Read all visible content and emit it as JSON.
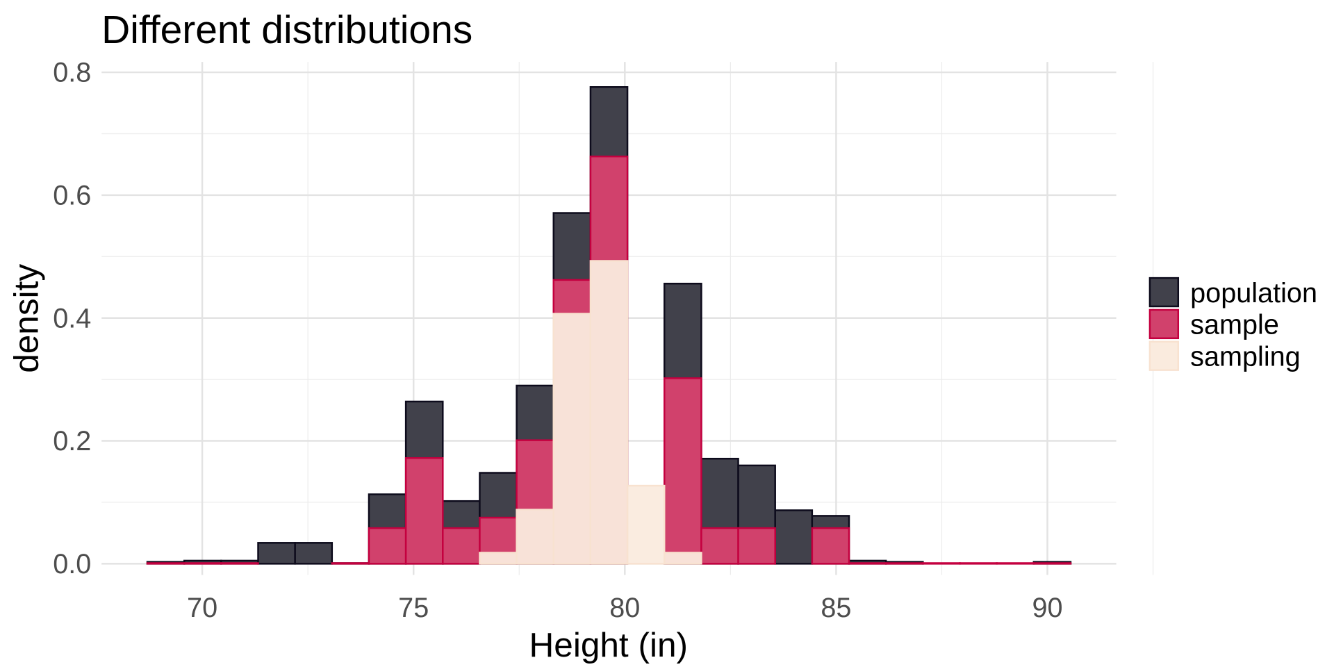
{
  "chart_data": {
    "type": "bar",
    "subtype": "overlaid-histogram",
    "title": "Different distributions",
    "xlabel": "Height (in)",
    "ylabel": "density",
    "xlim": [
      68.3,
      92.3
    ],
    "ylim": [
      -0.04,
      0.83
    ],
    "x_ticks": [
      70,
      75,
      80,
      85,
      90
    ],
    "x_tick_labels": [
      "70",
      "75",
      "80",
      "85",
      "90"
    ],
    "y_ticks": [
      0,
      0.2,
      0.4,
      0.6,
      0.8
    ],
    "y_tick_labels": [
      "0.0",
      "0.2",
      "0.4",
      "0.6",
      "0.8"
    ],
    "grid": true,
    "legend_position": "right",
    "bin_start": 68.7,
    "bin_width": 0.874,
    "series": [
      {
        "name": "population",
        "fill": "#41414b",
        "stroke": "#0d0b1c",
        "values": [
          0.003,
          0.005,
          0.005,
          0.034,
          0.034,
          0.001,
          0.113,
          0.264,
          0.102,
          0.148,
          0.29,
          0.571,
          0.776,
          0.0,
          0.456,
          0.171,
          0.16,
          0.087,
          0.078,
          0.005,
          0.003,
          0.0,
          0.0,
          0.0,
          0.003
        ]
      },
      {
        "name": "sample",
        "fill": "#d1416c",
        "stroke": "#c4003f",
        "values": [
          0.001,
          0.001,
          0.001,
          0.0,
          0.0,
          0.001,
          0.058,
          0.172,
          0.058,
          0.075,
          0.201,
          0.462,
          0.663,
          0.0,
          0.302,
          0.058,
          0.058,
          0.0,
          0.058,
          0.001,
          0.001,
          0.001,
          0.001,
          0.001,
          0.001
        ]
      },
      {
        "name": "sampling",
        "fill": "#faebde",
        "stroke": "#f8e2d0",
        "values": [
          0,
          0,
          0,
          0,
          0,
          0,
          0,
          0,
          0,
          0.018,
          0.088,
          0.407,
          0.493,
          0.127,
          0.018,
          0,
          0,
          0,
          0,
          0,
          0,
          0,
          0,
          0,
          0
        ]
      }
    ]
  }
}
